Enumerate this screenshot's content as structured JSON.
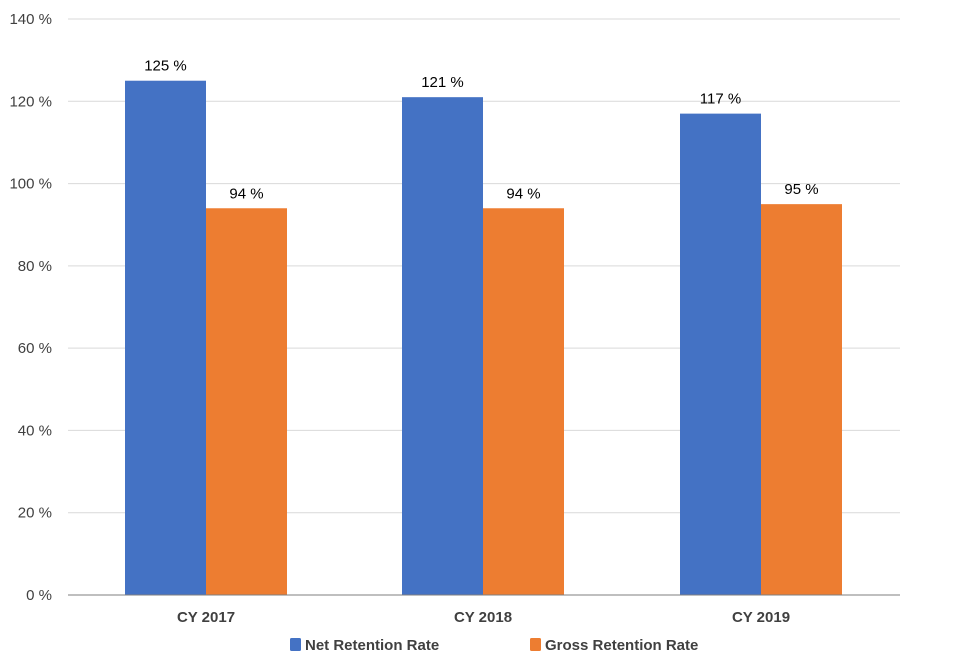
{
  "chart_data": {
    "type": "bar",
    "categories": [
      "CY 2017",
      "CY 2018",
      "CY 2019"
    ],
    "series": [
      {
        "name": "Net Retention Rate",
        "values": [
          125,
          121,
          117
        ],
        "labels": [
          "125 %",
          "121 %",
          "117 %"
        ],
        "color": "#4472C4"
      },
      {
        "name": "Gross Retention Rate",
        "values": [
          94,
          94,
          95
        ],
        "labels": [
          "94 %",
          "94 %",
          "95 %"
        ],
        "color": "#ED7D31"
      }
    ],
    "ylim": [
      0,
      140
    ],
    "yticks": [
      0,
      20,
      40,
      60,
      80,
      100,
      120,
      140
    ],
    "ytick_labels": [
      "0 %",
      "20 %",
      "40 %",
      "60 %",
      "80 %",
      "100 %",
      "120 %",
      "140 %"
    ],
    "title": "",
    "xlabel": "",
    "ylabel": "",
    "grid": true,
    "legend_position": "bottom",
    "colors": {
      "gridline": "#D9D9D9",
      "axis": "#7F7F7F"
    }
  }
}
